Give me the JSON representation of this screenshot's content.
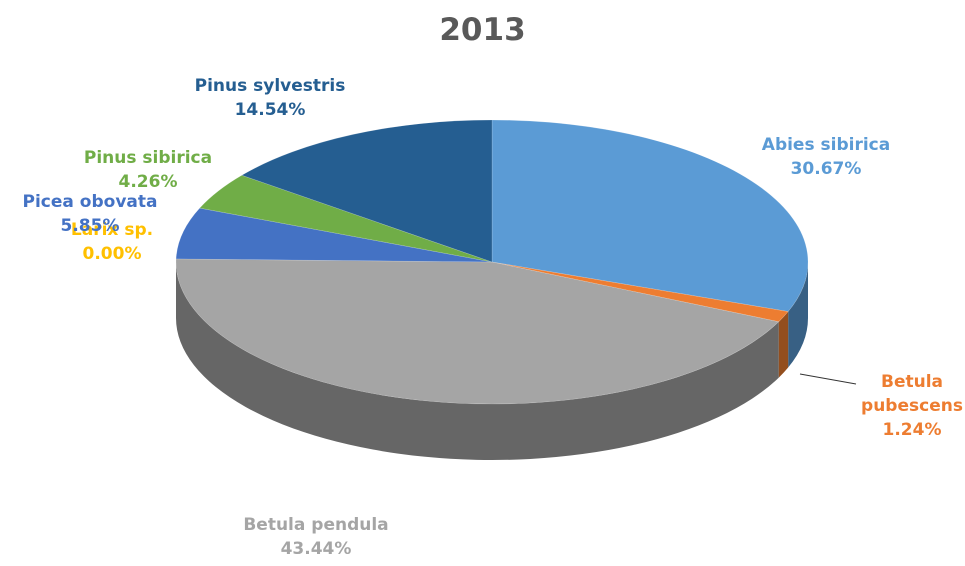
{
  "chart_data": {
    "type": "pie",
    "title": "2013",
    "categories": [
      "Abies sibirica",
      "Betula pubescens",
      "Betula pendula",
      "Larix sp.",
      "Picea obovata",
      "Pinus sibirica",
      "Pinus sylvestris"
    ],
    "values": [
      30.67,
      1.24,
      43.44,
      0.0,
      5.85,
      4.26,
      14.54
    ],
    "value_labels": [
      "30.67%",
      "1.24%",
      "43.44%",
      "0.00%",
      "5.85%",
      "4.26%",
      "14.54%"
    ],
    "colors": [
      "#5b9bd5",
      "#ed7d31",
      "#a5a5a5",
      "#ffc000",
      "#4472c4",
      "#70ad47",
      "#255e91"
    ]
  }
}
